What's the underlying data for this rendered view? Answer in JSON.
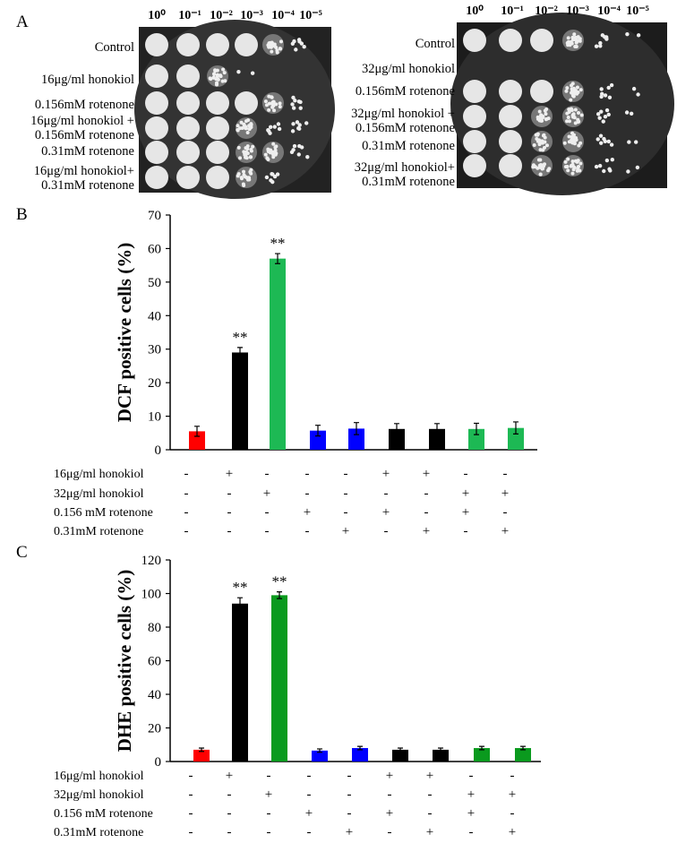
{
  "panel_a": {
    "label": "A",
    "dilutions": [
      "10⁰",
      "10⁻¹",
      "10⁻²",
      "10⁻³",
      "10⁻⁴",
      "10⁻⁵"
    ],
    "left_rows": [
      [
        "Control"
      ],
      [
        "16μg/ml honokiol"
      ],
      [
        "0.156mM rotenone"
      ],
      [
        "16μg/ml honokiol +",
        "0.156mM rotenone"
      ],
      [
        "0.31mM rotenone"
      ],
      [
        "16μg/ml honokiol+",
        "0.31mM rotenone"
      ]
    ],
    "right_rows": [
      [
        "Control"
      ],
      [
        "32μg/ml honokiol"
      ],
      [
        "0.156mM rotenone"
      ],
      [
        "32μg/ml honokiol +",
        "0.156mM rotenone"
      ],
      [
        "0.31mM rotenone"
      ],
      [
        "32μg/ml honokiol+",
        "0.31mM rotenone"
      ]
    ]
  },
  "chart_data": [
    {
      "type": "bar",
      "label": "B",
      "y_label": "DCF positive cells (%)",
      "values": [
        5.5,
        29,
        57,
        5.7,
        6.3,
        6.2,
        6.2,
        6.2,
        6.5
      ],
      "errors": [
        1.5,
        1.5,
        1.5,
        1.6,
        1.8,
        1.6,
        1.6,
        1.7,
        1.8
      ],
      "colors": [
        "#ff0000",
        "#000000",
        "#1db954",
        "#0000ff",
        "#0000ff",
        "#000000",
        "#000000",
        "#1db954",
        "#1db954"
      ],
      "significance": [
        null,
        "**",
        "**",
        null,
        null,
        null,
        null,
        null,
        null
      ],
      "ylim": [
        0,
        70
      ],
      "yticks": [
        0,
        10,
        20,
        30,
        40,
        50,
        60,
        70
      ],
      "conditions": [
        {
          "label": "16μg/ml honokiol",
          "signs": [
            "-",
            "+",
            "-",
            "-",
            "-",
            "+",
            "+",
            "-",
            "-"
          ]
        },
        {
          "label": "32μg/ml honokiol",
          "signs": [
            "-",
            "-",
            "+",
            "-",
            "-",
            "-",
            "-",
            "+",
            "+"
          ]
        },
        {
          "label": "0.156 mM rotenone",
          "signs": [
            "-",
            "-",
            "-",
            "+",
            "-",
            "+",
            "-",
            "+",
            "-"
          ]
        },
        {
          "label": "0.31mM rotenone",
          "signs": [
            "-",
            "-",
            "-",
            "-",
            "+",
            "-",
            "+",
            "-",
            "+"
          ]
        }
      ]
    },
    {
      "type": "bar",
      "label": "C",
      "y_label": "DHE positive cells (%)",
      "values": [
        7,
        94,
        99,
        6.5,
        8,
        7,
        7,
        8,
        8
      ],
      "errors": [
        1,
        3.5,
        2,
        1,
        1,
        1,
        1,
        1,
        1
      ],
      "colors": [
        "#ff0000",
        "#000000",
        "#0a9a1e",
        "#0000ff",
        "#0000ff",
        "#000000",
        "#000000",
        "#0a9a1e",
        "#0a9a1e"
      ],
      "significance": [
        null,
        "**",
        "**",
        null,
        null,
        null,
        null,
        null,
        null
      ],
      "ylim": [
        0,
        120
      ],
      "yticks": [
        0,
        20,
        40,
        60,
        80,
        100,
        120
      ],
      "conditions": [
        {
          "label": "16μg/ml honokiol",
          "signs": [
            "-",
            "+",
            "-",
            "-",
            "-",
            "+",
            "+",
            "-",
            "-"
          ]
        },
        {
          "label": "32μg/ml honokiol",
          "signs": [
            "-",
            "-",
            "+",
            "-",
            "-",
            "-",
            "-",
            "+",
            "+"
          ]
        },
        {
          "label": "0.156 mM rotenone",
          "signs": [
            "-",
            "-",
            "-",
            "+",
            "-",
            "+",
            "-",
            "+",
            "-"
          ]
        },
        {
          "label": "0.31mM rotenone",
          "signs": [
            "-",
            "-",
            "-",
            "-",
            "+",
            "-",
            "+",
            "-",
            "+"
          ]
        }
      ]
    }
  ]
}
